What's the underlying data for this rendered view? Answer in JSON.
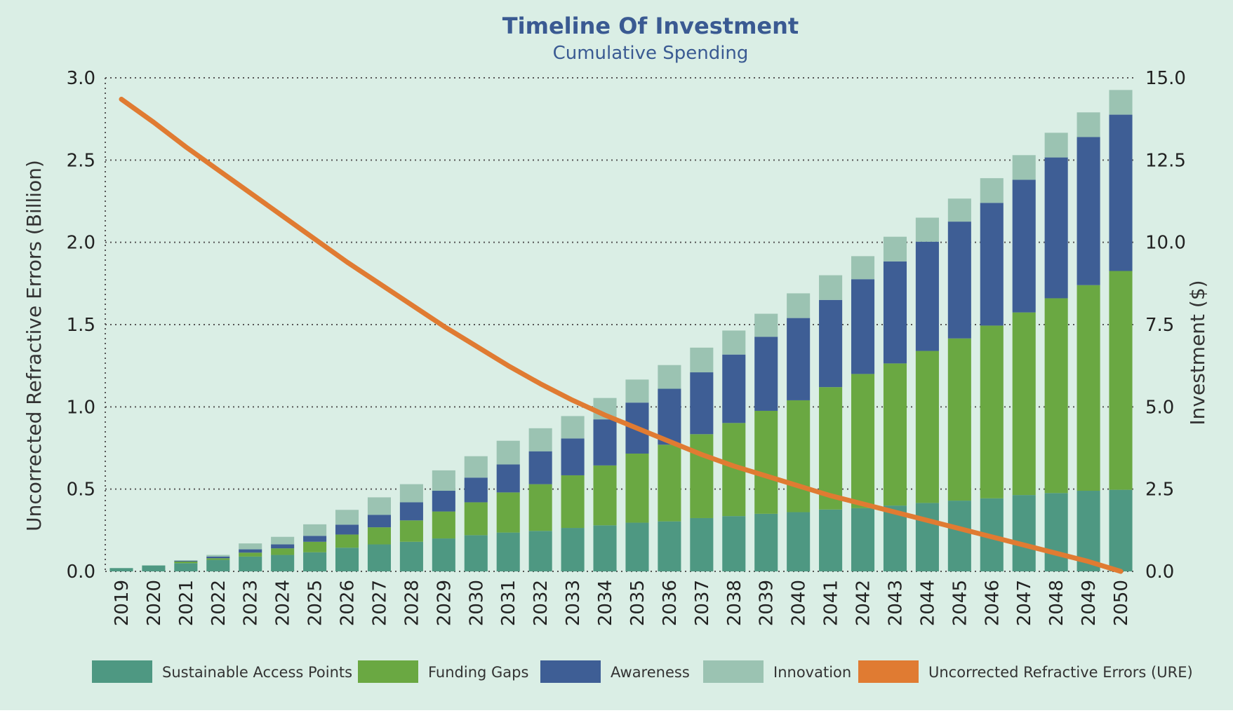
{
  "chart_data": {
    "type": "bar",
    "title": "Timeline Of Investment",
    "subtitle": "Cumulative Spending",
    "ylabel_left": "Uncorrected Refractive Errors (Billion)",
    "ylabel_right": "Investment ($)",
    "ylim_left": [
      0,
      3.0
    ],
    "ylim_right": [
      0,
      15.0
    ],
    "yticks_left": [
      "0.0",
      "0.5",
      "1.0",
      "1.5",
      "2.0",
      "2.5",
      "3.0"
    ],
    "yticks_right": [
      "0.0",
      "2.5",
      "5.0",
      "7.5",
      "10.0",
      "12.5",
      "15.0"
    ],
    "grid": "horizontal-dotted",
    "legend_position": "bottom",
    "categories": [
      "2019",
      "2020",
      "2021",
      "2022",
      "2023",
      "2024",
      "2025",
      "2026",
      "2027",
      "2028",
      "2029",
      "2030",
      "2031",
      "2032",
      "2033",
      "2034",
      "2035",
      "2036",
      "2037",
      "2038",
      "2039",
      "2040",
      "2041",
      "2042",
      "2043",
      "2044",
      "2045",
      "2046",
      "2047",
      "2048",
      "2049",
      "2050"
    ],
    "series": [
      {
        "name": "Sustainable Access Points",
        "color": "#4e9882",
        "axis": "right",
        "values": [
          0.1,
          0.18,
          0.25,
          0.35,
          0.45,
          0.5,
          0.58,
          0.72,
          0.82,
          0.9,
          1.0,
          1.1,
          1.18,
          1.23,
          1.32,
          1.4,
          1.48,
          1.52,
          1.62,
          1.68,
          1.75,
          1.8,
          1.88,
          1.92,
          2.0,
          2.08,
          2.15,
          2.22,
          2.32,
          2.38,
          2.45,
          2.48
        ]
      },
      {
        "name": "Funding Gaps",
        "color": "#6aa842",
        "axis": "right",
        "values": [
          0.0,
          0.0,
          0.05,
          0.05,
          0.12,
          0.2,
          0.32,
          0.4,
          0.52,
          0.65,
          0.82,
          1.0,
          1.22,
          1.42,
          1.6,
          1.82,
          2.1,
          2.33,
          2.55,
          2.83,
          3.13,
          3.4,
          3.72,
          4.08,
          4.32,
          4.62,
          4.93,
          5.25,
          5.55,
          5.92,
          6.25,
          6.65
        ]
      },
      {
        "name": "Awareness",
        "color": "#3e5e95",
        "axis": "right",
        "values": [
          0.0,
          0.0,
          0.02,
          0.05,
          0.1,
          0.12,
          0.18,
          0.3,
          0.38,
          0.55,
          0.63,
          0.75,
          0.85,
          1.0,
          1.12,
          1.4,
          1.55,
          1.7,
          1.88,
          2.08,
          2.25,
          2.5,
          2.65,
          2.88,
          3.1,
          3.32,
          3.55,
          3.73,
          4.03,
          4.28,
          4.5,
          4.75
        ]
      },
      {
        "name": "Innovation",
        "color": "#9bc3b2",
        "axis": "right",
        "values": [
          0.0,
          0.0,
          0.02,
          0.05,
          0.18,
          0.23,
          0.35,
          0.45,
          0.53,
          0.55,
          0.62,
          0.65,
          0.72,
          0.7,
          0.68,
          0.65,
          0.7,
          0.72,
          0.75,
          0.73,
          0.7,
          0.75,
          0.75,
          0.7,
          0.75,
          0.73,
          0.7,
          0.75,
          0.75,
          0.75,
          0.75,
          0.75
        ]
      },
      {
        "name": "Uncorrected Refractive Errors (URE)",
        "color": "#e07b32",
        "axis": "left",
        "type": "line",
        "values": [
          2.87,
          2.73,
          2.58,
          2.44,
          2.3,
          2.16,
          2.02,
          1.88,
          1.75,
          1.62,
          1.49,
          1.37,
          1.25,
          1.14,
          1.04,
          0.95,
          0.87,
          0.79,
          0.71,
          0.64,
          0.58,
          0.52,
          0.46,
          0.41,
          0.36,
          0.31,
          0.26,
          0.21,
          0.16,
          0.11,
          0.06,
          0.0
        ]
      }
    ]
  }
}
